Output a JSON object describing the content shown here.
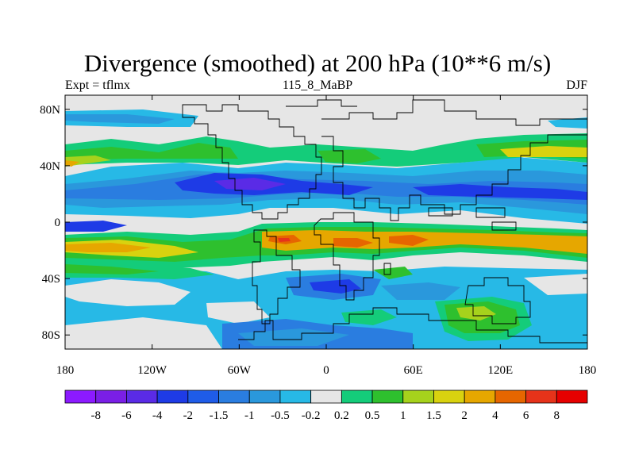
{
  "header": {
    "title": "Divergence (smoothed) at 200 hPa (10**6 m/s)",
    "left_label": "Expt = tflmx",
    "center_label": "115_8_MaBP",
    "right_label": "DJF"
  },
  "map": {
    "lon_range": [
      -180,
      180
    ],
    "lat_range": [
      -90,
      90
    ],
    "x_ticks": [
      {
        "value": -180,
        "label": "180"
      },
      {
        "value": -120,
        "label": "120W"
      },
      {
        "value": -60,
        "label": "60W"
      },
      {
        "value": 0,
        "label": "0"
      },
      {
        "value": 60,
        "label": "60E"
      },
      {
        "value": 120,
        "label": "120E"
      },
      {
        "value": 180,
        "label": "180"
      }
    ],
    "y_ticks": [
      {
        "value": 80,
        "label": "80N"
      },
      {
        "value": 40,
        "label": "40N"
      },
      {
        "value": 0,
        "label": "0"
      },
      {
        "value": -40,
        "label": "40S"
      },
      {
        "value": -80,
        "label": "80S"
      }
    ],
    "missing_color": "#e6e6e6",
    "coast_color": "#000000"
  },
  "colorbar": {
    "colors": [
      "#8c1aff",
      "#7a1fe6",
      "#5a2be6",
      "#1e3be6",
      "#1f5ce8",
      "#2a7de0",
      "#2a98dc",
      "#27b9e6",
      "#e6e6e6",
      "#14cc7a",
      "#2ec02e",
      "#a6d21c",
      "#d9d20f",
      "#e6a700",
      "#e66600",
      "#e6331a",
      "#e60000"
    ],
    "labels": [
      "-8",
      "-6",
      "-4",
      "-2",
      "-1.5",
      "-1",
      "-0.5",
      "-0.2",
      "0.2",
      "0.5",
      "1",
      "1.5",
      "2",
      "4",
      "6",
      "8"
    ]
  }
}
